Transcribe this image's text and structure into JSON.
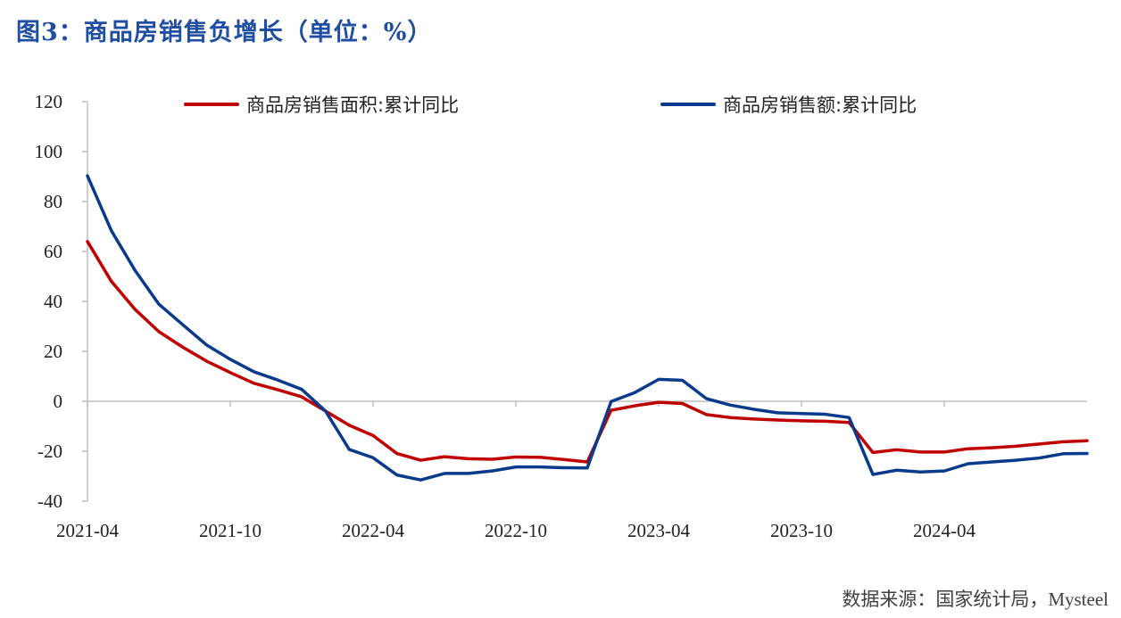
{
  "title": "图3：商品房销售负增长（单位：%）",
  "source": "数据来源：国家统计局，Mysteel",
  "colors": {
    "title": "#1f4ea3",
    "area": "#c00000",
    "sales": "#0a3a8c"
  },
  "chart_data": {
    "type": "line",
    "title": "图3：商品房销售负增长（单位：%）",
    "xlabel": "",
    "ylabel": "",
    "ylim": [
      -40,
      120
    ],
    "yticks": [
      120,
      100,
      80,
      60,
      40,
      20,
      0,
      -20,
      -40
    ],
    "xtick_labels": [
      "2021-04",
      "2021-10",
      "2022-04",
      "2022-10",
      "2023-04",
      "2023-10",
      "2024-04"
    ],
    "grid": false,
    "legend": "top",
    "x": [
      "2021-04",
      "2021-05",
      "2021-06",
      "2021-07",
      "2021-08",
      "2021-09",
      "2021-10",
      "2021-11",
      "2021-12",
      "2022-01",
      "2022-02",
      "2022-03",
      "2022-04",
      "2022-05",
      "2022-06",
      "2022-07",
      "2022-08",
      "2022-09",
      "2022-10",
      "2022-11",
      "2022-12",
      "2023-01",
      "2023-02",
      "2023-03",
      "2023-04",
      "2023-05",
      "2023-06",
      "2023-07",
      "2023-08",
      "2023-09",
      "2023-10",
      "2023-11",
      "2023-12",
      "2024-01",
      "2024-02",
      "2024-03",
      "2024-04",
      "2024-05",
      "2024-06",
      "2024-07",
      "2024-08",
      "2024-09",
      "2024-10"
    ],
    "series": [
      {
        "name": "商品房销售面积:累计同比",
        "color": "#c00000",
        "values": [
          64.0,
          48.1,
          36.8,
          27.9,
          21.7,
          16.1,
          11.5,
          7.2,
          4.6,
          1.8,
          -3.9,
          -9.6,
          -13.7,
          -20.9,
          -23.6,
          -22.2,
          -23.0,
          -23.2,
          -22.3,
          -22.4,
          -23.3,
          -24.3,
          -3.6,
          -1.8,
          -0.4,
          -0.9,
          -5.3,
          -6.5,
          -7.1,
          -7.5,
          -7.8,
          -8.0,
          -8.5,
          -20.5,
          -19.4,
          -20.3,
          -20.3,
          -19.0,
          -18.6,
          -18.0,
          -17.1,
          -16.2,
          -15.8
        ]
      },
      {
        "name": "商品房销售额:累计同比",
        "color": "#0a3a8c",
        "values": [
          90.3,
          68.4,
          52.4,
          38.9,
          30.7,
          22.6,
          16.8,
          11.8,
          8.5,
          4.8,
          -3.9,
          -19.3,
          -22.6,
          -29.5,
          -31.5,
          -28.9,
          -28.9,
          -27.9,
          -26.3,
          -26.3,
          -26.6,
          -26.7,
          -0.1,
          3.5,
          8.8,
          8.4,
          1.1,
          -1.5,
          -3.2,
          -4.6,
          -4.9,
          -5.2,
          -6.5,
          -29.3,
          -27.6,
          -28.3,
          -27.9,
          -25.0,
          -24.3,
          -23.6,
          -22.7,
          -21.0,
          -20.9
        ]
      }
    ]
  }
}
